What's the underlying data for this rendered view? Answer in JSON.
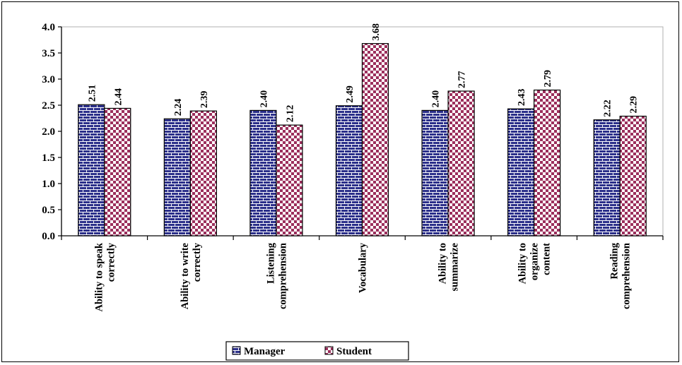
{
  "chart_data": {
    "type": "bar",
    "categories": [
      [
        "Ability to speak",
        "correctly"
      ],
      [
        "Ability to write",
        "correctly"
      ],
      [
        "Listening",
        "comprehension"
      ],
      [
        "Vocabulary"
      ],
      [
        "Ability to",
        "summarize"
      ],
      [
        "Ability to",
        "organize",
        "content"
      ],
      [
        "Reading",
        "comprehension"
      ]
    ],
    "series": [
      {
        "name": "Manager",
        "values": [
          2.51,
          2.24,
          2.4,
          2.49,
          2.4,
          2.43,
          2.22
        ],
        "labels": [
          "2.51",
          "2.24",
          "2.40",
          "2.49",
          "2.40",
          "2.43",
          "2.22"
        ],
        "color": "#2b2f8a",
        "pattern": "brick"
      },
      {
        "name": "Student",
        "values": [
          2.44,
          2.39,
          2.12,
          3.68,
          2.77,
          2.79,
          2.29
        ],
        "labels": [
          "2.44",
          "2.39",
          "2.12",
          "3.68",
          "2.77",
          "2.79",
          "2.29"
        ],
        "color": "#9c2f5c",
        "pattern": "checker"
      }
    ],
    "ylim": [
      0,
      4.0
    ],
    "yticks": [
      "0.0",
      "0.5",
      "1.0",
      "1.5",
      "2.0",
      "2.5",
      "3.0",
      "3.5",
      "4.0"
    ],
    "grid": false,
    "legend_position": "bottom"
  }
}
